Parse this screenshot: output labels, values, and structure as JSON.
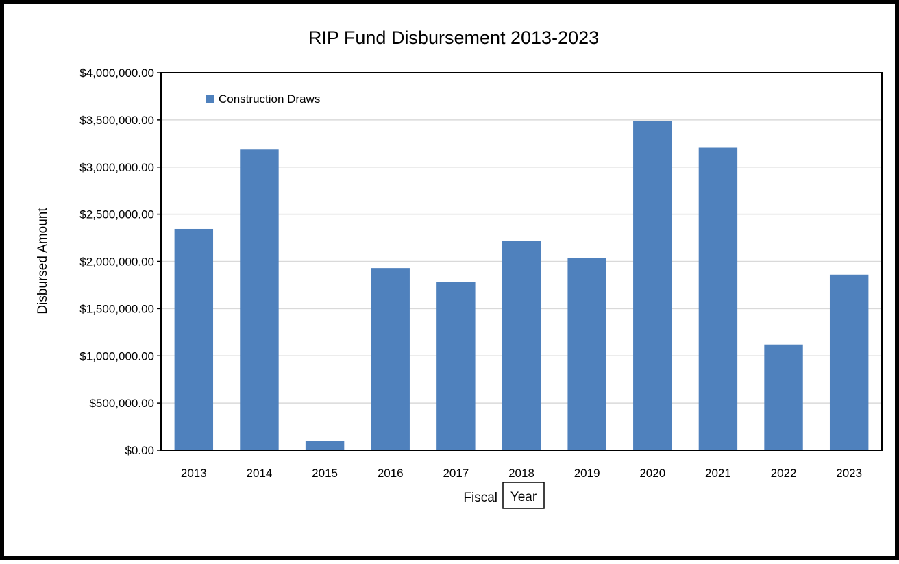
{
  "chart_data": {
    "type": "bar",
    "title": "RIP Fund Disbursement 2013-2023",
    "xlabel": "Fiscal",
    "xlabel_boxed_part": "Year",
    "ylabel": "Disbursed Amount",
    "categories": [
      "2013",
      "2014",
      "2015",
      "2016",
      "2017",
      "2018",
      "2019",
      "2020",
      "2021",
      "2022",
      "2023"
    ],
    "series": [
      {
        "name": "Construction Draws",
        "color": "#4f81bd",
        "values": [
          2345000,
          3185000,
          100000,
          1930000,
          1780000,
          2215000,
          2035000,
          3485000,
          3205000,
          1120000,
          1860000
        ]
      }
    ],
    "ylim": [
      0,
      4000000
    ],
    "yticks": [
      0,
      500000,
      1000000,
      1500000,
      2000000,
      2500000,
      3000000,
      3500000,
      4000000
    ],
    "ytick_labels": [
      "$0.00",
      "$500,000.00",
      "$1,000,000.00",
      "$1,500,000.00",
      "$2,000,000.00",
      "$2,500,000.00",
      "$3,000,000.00",
      "$3,500,000.00",
      "$4,000,000.00"
    ],
    "grid": true,
    "legend_position": "top-left"
  }
}
